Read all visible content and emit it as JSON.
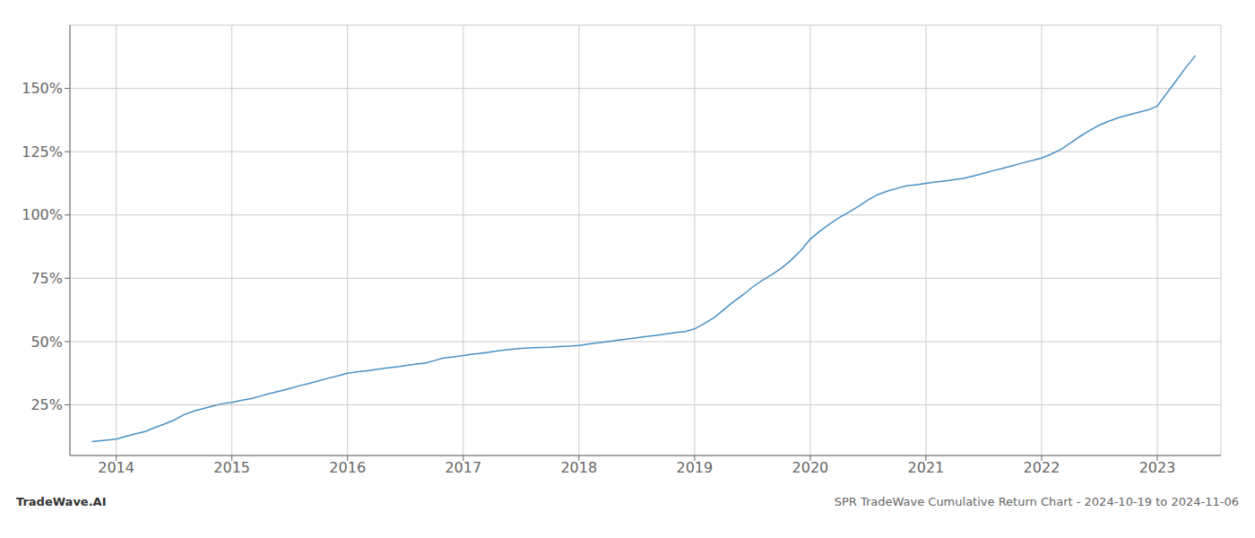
{
  "chart_data": {
    "type": "line",
    "title": "SPR TradeWave Cumulative Return Chart - 2024-10-19 to 2024-11-06",
    "annotations": [
      "TradeWave.AI"
    ],
    "color": "#4a90c4",
    "grid": true,
    "x": [
      2013.79,
      2014.0,
      2014.08,
      2014.16,
      2014.25,
      2014.33,
      2014.42,
      2014.5,
      2014.58,
      2014.67,
      2014.75,
      2014.83,
      2014.92,
      2015.0,
      2015.08,
      2015.17,
      2015.25,
      2015.33,
      2015.42,
      2015.5,
      2015.58,
      2015.67,
      2015.75,
      2015.83,
      2015.92,
      2016.0,
      2016.08,
      2016.17,
      2016.25,
      2016.33,
      2016.42,
      2016.5,
      2016.58,
      2016.67,
      2016.75,
      2016.83,
      2016.92,
      2017.0,
      2017.08,
      2017.17,
      2017.25,
      2017.33,
      2017.42,
      2017.5,
      2017.58,
      2017.67,
      2017.75,
      2017.83,
      2017.92,
      2018.0,
      2018.08,
      2018.17,
      2018.25,
      2018.33,
      2018.42,
      2018.5,
      2018.58,
      2018.67,
      2018.75,
      2018.83,
      2018.92,
      2019.0,
      2019.08,
      2019.17,
      2019.25,
      2019.33,
      2019.42,
      2019.5,
      2019.58,
      2019.67,
      2019.75,
      2019.83,
      2019.92,
      2020.0,
      2020.08,
      2020.17,
      2020.25,
      2020.33,
      2020.42,
      2020.5,
      2020.58,
      2020.67,
      2020.75,
      2020.83,
      2020.92,
      2021.0,
      2021.08,
      2021.17,
      2021.25,
      2021.33,
      2021.42,
      2021.5,
      2021.58,
      2021.67,
      2021.75,
      2021.83,
      2021.92,
      2022.0,
      2022.08,
      2022.17,
      2022.25,
      2022.33,
      2022.42,
      2022.5,
      2022.58,
      2022.67,
      2022.75,
      2022.83,
      2022.92,
      2023.0,
      2023.08,
      2023.17,
      2023.25,
      2023.33
    ],
    "values": [
      10.5,
      11.5,
      12.5,
      13.5,
      14.5,
      16.0,
      17.5,
      19.0,
      21.0,
      22.5,
      23.5,
      24.5,
      25.5,
      26.0,
      26.8,
      27.5,
      28.5,
      29.5,
      30.5,
      31.5,
      32.5,
      33.5,
      34.5,
      35.5,
      36.5,
      37.5,
      38.0,
      38.5,
      39.0,
      39.5,
      40.0,
      40.5,
      41.0,
      41.5,
      42.5,
      43.5,
      44.0,
      44.5,
      45.0,
      45.5,
      46.0,
      46.5,
      47.0,
      47.3,
      47.5,
      47.7,
      47.8,
      48.0,
      48.2,
      48.5,
      49.0,
      49.5,
      50.0,
      50.5,
      51.0,
      51.5,
      52.0,
      52.5,
      53.0,
      53.5,
      54.0,
      55.0,
      57.0,
      59.5,
      62.5,
      65.5,
      68.5,
      71.5,
      74.0,
      76.5,
      79.0,
      82.0,
      86.0,
      90.5,
      93.5,
      96.5,
      99.0,
      101.0,
      103.5,
      106.0,
      108.0,
      109.5,
      110.5,
      111.5,
      112.0,
      112.5,
      113.0,
      113.5,
      114.0,
      114.5,
      115.5,
      116.5,
      117.5,
      118.5,
      119.5,
      120.5,
      121.5,
      122.5,
      124.0,
      126.0,
      128.5,
      131.0,
      133.5,
      135.5,
      137.0,
      138.5,
      139.5,
      140.5,
      141.5,
      143.0,
      148.0,
      153.5,
      158.5,
      163.0
    ],
    "xlim": [
      2013.6,
      2023.55
    ],
    "xticks": [
      2014,
      2015,
      2016,
      2017,
      2018,
      2019,
      2020,
      2021,
      2022,
      2023
    ],
    "ylim": [
      5,
      175
    ],
    "yticks": [
      {
        "value": 25,
        "label": "25%"
      },
      {
        "value": 50,
        "label": "50%"
      },
      {
        "value": 75,
        "label": "75%"
      },
      {
        "value": 100,
        "label": "100%"
      },
      {
        "value": 125,
        "label": "125%"
      },
      {
        "value": 150,
        "label": "150%"
      }
    ]
  }
}
